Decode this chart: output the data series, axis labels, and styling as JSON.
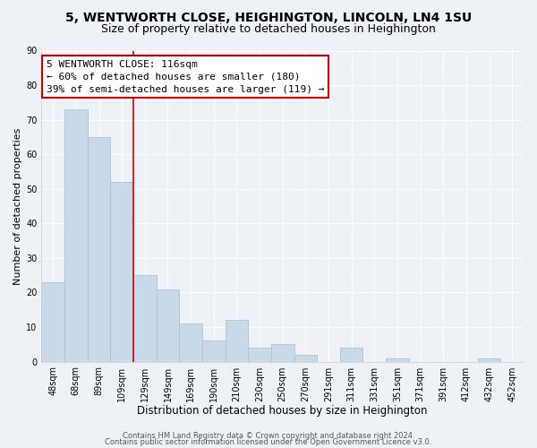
{
  "title": "5, WENTWORTH CLOSE, HEIGHINGTON, LINCOLN, LN4 1SU",
  "subtitle": "Size of property relative to detached houses in Heighington",
  "xlabel": "Distribution of detached houses by size in Heighington",
  "ylabel": "Number of detached properties",
  "bar_color": "#c8daea",
  "bar_edgecolor": "#a8c4d8",
  "categories": [
    "48sqm",
    "68sqm",
    "89sqm",
    "109sqm",
    "129sqm",
    "149sqm",
    "169sqm",
    "190sqm",
    "210sqm",
    "230sqm",
    "250sqm",
    "270sqm",
    "291sqm",
    "311sqm",
    "331sqm",
    "351sqm",
    "371sqm",
    "391sqm",
    "412sqm",
    "432sqm",
    "452sqm"
  ],
  "values": [
    23,
    73,
    65,
    52,
    25,
    21,
    11,
    6,
    12,
    4,
    5,
    2,
    0,
    4,
    0,
    1,
    0,
    0,
    0,
    1,
    0
  ],
  "ylim": [
    0,
    90
  ],
  "yticks": [
    0,
    10,
    20,
    30,
    40,
    50,
    60,
    70,
    80,
    90
  ],
  "vline_x_index": 3.5,
  "vline_color": "#cc0000",
  "annotation_title": "5 WENTWORTH CLOSE: 116sqm",
  "annotation_line1": "← 60% of detached houses are smaller (180)",
  "annotation_line2": "39% of semi-detached houses are larger (119) →",
  "annotation_box_color": "#ffffff",
  "annotation_box_edgecolor": "#cc0000",
  "footer_line1": "Contains HM Land Registry data © Crown copyright and database right 2024.",
  "footer_line2": "Contains public sector information licensed under the Open Government Licence v3.0.",
  "background_color": "#eef2f7",
  "plot_background_color": "#eef2f7",
  "grid_color": "#ffffff",
  "title_fontsize": 10,
  "subtitle_fontsize": 9,
  "xlabel_fontsize": 8.5,
  "ylabel_fontsize": 8,
  "tick_fontsize": 7,
  "annotation_fontsize": 8,
  "footer_fontsize": 6
}
